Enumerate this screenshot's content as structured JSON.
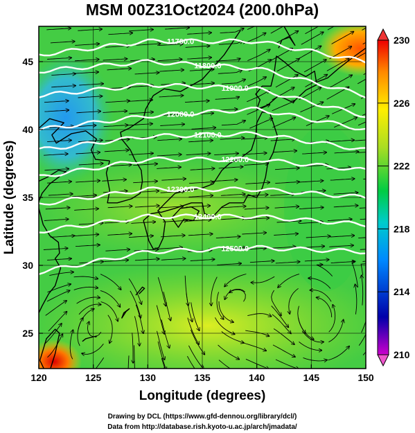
{
  "title": "MSM 00Z31Oct2024 (200.0hPa)",
  "x_axis": {
    "label": "Longitude (degrees)",
    "ticks": [
      "120",
      "125",
      "130",
      "135",
      "140",
      "145",
      "150"
    ],
    "range": [
      120,
      150
    ]
  },
  "y_axis": {
    "label": "Latitude (degrees)",
    "ticks": [
      "25",
      "30",
      "35",
      "40",
      "45"
    ],
    "range": [
      22.4,
      47.6
    ]
  },
  "colorbar": {
    "ticks": [
      "210",
      "214",
      "218",
      "222",
      "226",
      "230"
    ],
    "range": [
      210,
      230
    ],
    "colors": [
      "#cc00cc",
      "#0000aa",
      "#0088ff",
      "#00cccc",
      "#00cc44",
      "#aadd22",
      "#ffee00",
      "#ff8800",
      "#ee0000"
    ]
  },
  "contours": [
    {
      "label": "11700.0",
      "lat_at_lon": [
        [
          120,
          45.5
        ],
        [
          130,
          46.5
        ],
        [
          140,
          46.5
        ],
        [
          150,
          45.0
        ]
      ]
    },
    {
      "label": "11800.0",
      "lat_at_lon": [
        [
          120,
          44.3
        ],
        [
          130,
          45.0
        ],
        [
          140,
          44.5
        ],
        [
          150,
          42.5
        ]
      ]
    },
    {
      "label": "11900.0",
      "lat_at_lon": [
        [
          120,
          42.5
        ],
        [
          130,
          43.3
        ],
        [
          140,
          43.0
        ],
        [
          150,
          41.0
        ]
      ]
    },
    {
      "label": "12000.0",
      "lat_at_lon": [
        [
          120,
          40.0
        ],
        [
          130,
          41.0
        ],
        [
          140,
          41.5
        ],
        [
          150,
          40.0
        ]
      ]
    },
    {
      "label": "12100.0",
      "lat_at_lon": [
        [
          120,
          38.5
        ],
        [
          130,
          39.5
        ],
        [
          140,
          39.7
        ],
        [
          150,
          38.5
        ]
      ]
    },
    {
      "label": "12200.0",
      "lat_at_lon": [
        [
          120,
          36.5
        ],
        [
          130,
          37.8
        ],
        [
          140,
          37.8
        ],
        [
          150,
          37.0
        ]
      ]
    },
    {
      "label": "12300.0",
      "lat_at_lon": [
        [
          120,
          34.5
        ],
        [
          130,
          35.6
        ],
        [
          140,
          35.6
        ],
        [
          150,
          35.0
        ]
      ]
    },
    {
      "label": "12400.0",
      "lat_at_lon": [
        [
          120,
          32.5
        ],
        [
          130,
          33.6
        ],
        [
          140,
          33.6
        ],
        [
          150,
          33.0
        ]
      ]
    },
    {
      "label": "12500.0",
      "lat_at_lon": [
        [
          120,
          29.5
        ],
        [
          130,
          31.0
        ],
        [
          140,
          31.3
        ],
        [
          150,
          31.0
        ]
      ]
    }
  ],
  "credits": [
    "Drawing by DCL (https://www.gfd-dennou.org/library/dcl/)",
    "Data from http://database.rish.kyoto-u.ac.jp/arch/jmadata/"
  ],
  "colors": {
    "field_green": "#33cc33",
    "field_yellow": "#ccdd22",
    "field_blue": "#22aaee",
    "field_red": "#ee2200",
    "contour": "#ffffff",
    "streamline": "#000000"
  }
}
